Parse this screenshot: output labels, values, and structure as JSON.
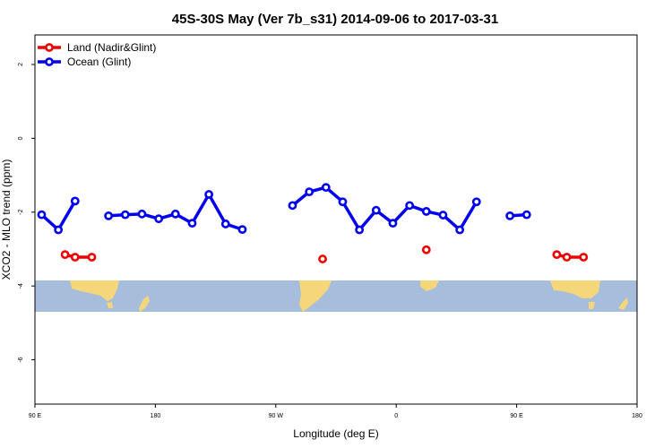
{
  "chart_data": {
    "type": "line",
    "title": "45S-30S May (Ver 7b_s31)   2014-09-06 to 2017-03-31",
    "xlabel": "Longitude (deg E)",
    "ylabel": "XCO2 - MLO trend (ppm)",
    "xlim": [
      90,
      450
    ],
    "ylim": [
      -7.2,
      2.8
    ],
    "x_ticks": [
      {
        "value": 90,
        "label": "90 E"
      },
      {
        "value": 180,
        "label": "180"
      },
      {
        "value": 270,
        "label": "90 W"
      },
      {
        "value": 360,
        "label": "0"
      },
      {
        "value": 450,
        "label": "90 E"
      },
      {
        "value": 540,
        "label": "180"
      }
    ],
    "y_ticks": [
      {
        "value": 2,
        "label": "2"
      },
      {
        "value": 0,
        "label": "0"
      },
      {
        "value": -2,
        "label": "-2"
      },
      {
        "value": -4,
        "label": "-4"
      },
      {
        "value": -6,
        "label": "-6"
      }
    ],
    "legend": {
      "position": "top-left"
    },
    "series": [
      {
        "name": "Land (Nadir&Glint)",
        "color": "#ee0000",
        "segments": [
          [
            [
              112.5,
              -3.15
            ],
            [
              120,
              -3.22
            ],
            [
              132.5,
              -3.22
            ]
          ],
          [
            [
              305,
              -3.27
            ]
          ],
          [
            [
              382.5,
              -3.02
            ]
          ],
          [
            [
              480,
              -3.15
            ],
            [
              487.5,
              -3.22
            ],
            [
              500,
              -3.22
            ]
          ]
        ]
      },
      {
        "name": "Ocean (Glint)",
        "color": "#0000ee",
        "segments": [
          [
            [
              95,
              -2.07
            ],
            [
              107.5,
              -2.48
            ],
            [
              120,
              -1.7
            ]
          ],
          [
            [
              145,
              -2.1
            ],
            [
              157.5,
              -2.07
            ],
            [
              170,
              -2.05
            ],
            [
              182.5,
              -2.18
            ],
            [
              195,
              -2.05
            ],
            [
              207.5,
              -2.3
            ],
            [
              220,
              -1.52
            ],
            [
              232.5,
              -2.32
            ],
            [
              245,
              -2.47
            ]
          ],
          [
            [
              282.5,
              -1.82
            ],
            [
              295,
              -1.45
            ],
            [
              307.5,
              -1.33
            ],
            [
              320,
              -1.72
            ],
            [
              332.5,
              -2.48
            ],
            [
              345,
              -1.95
            ],
            [
              357.5,
              -2.3
            ],
            [
              370,
              -1.82
            ],
            [
              382.5,
              -1.98
            ],
            [
              395,
              -2.08
            ],
            [
              407.5,
              -2.48
            ],
            [
              420,
              -1.72
            ]
          ],
          [
            [
              445,
              -2.1
            ],
            [
              457.5,
              -2.07
            ]
          ]
        ]
      }
    ]
  },
  "map_band": {
    "lat_range": [
      -45,
      -30
    ],
    "ocean_color": "#a6bddb",
    "land_color": "#f5d67a"
  }
}
